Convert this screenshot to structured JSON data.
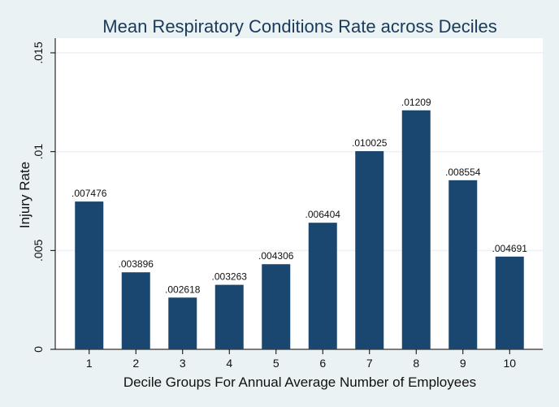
{
  "chart_data": {
    "type": "bar",
    "title": "Mean Respiratory Conditions Rate across Deciles",
    "xlabel": "Decile Groups For Annual Average Number of Employees",
    "ylabel": "Injury Rate",
    "categories": [
      "1",
      "2",
      "3",
      "4",
      "5",
      "6",
      "7",
      "8",
      "9",
      "10"
    ],
    "values": [
      0.007476,
      0.003896,
      0.002618,
      0.003263,
      0.004306,
      0.006404,
      0.010025,
      0.01209,
      0.008554,
      0.004691
    ],
    "value_labels": [
      ".007476",
      ".003896",
      ".002618",
      ".003263",
      ".004306",
      ".006404",
      ".010025",
      ".01209",
      ".008554",
      ".004691"
    ],
    "ylim": [
      0,
      0.015
    ],
    "yticks": [
      {
        "value": 0,
        "label": "0"
      },
      {
        "value": 0.005,
        "label": ".005"
      },
      {
        "value": 0.01,
        "label": ".01"
      },
      {
        "value": 0.015,
        "label": ".015"
      }
    ],
    "grid": true,
    "colors": {
      "bar": "#1a476f",
      "background": "#eaf2f3",
      "plot_background": "#ffffff",
      "grid": "#eaf2f3",
      "title": "#1a3a5c"
    }
  }
}
